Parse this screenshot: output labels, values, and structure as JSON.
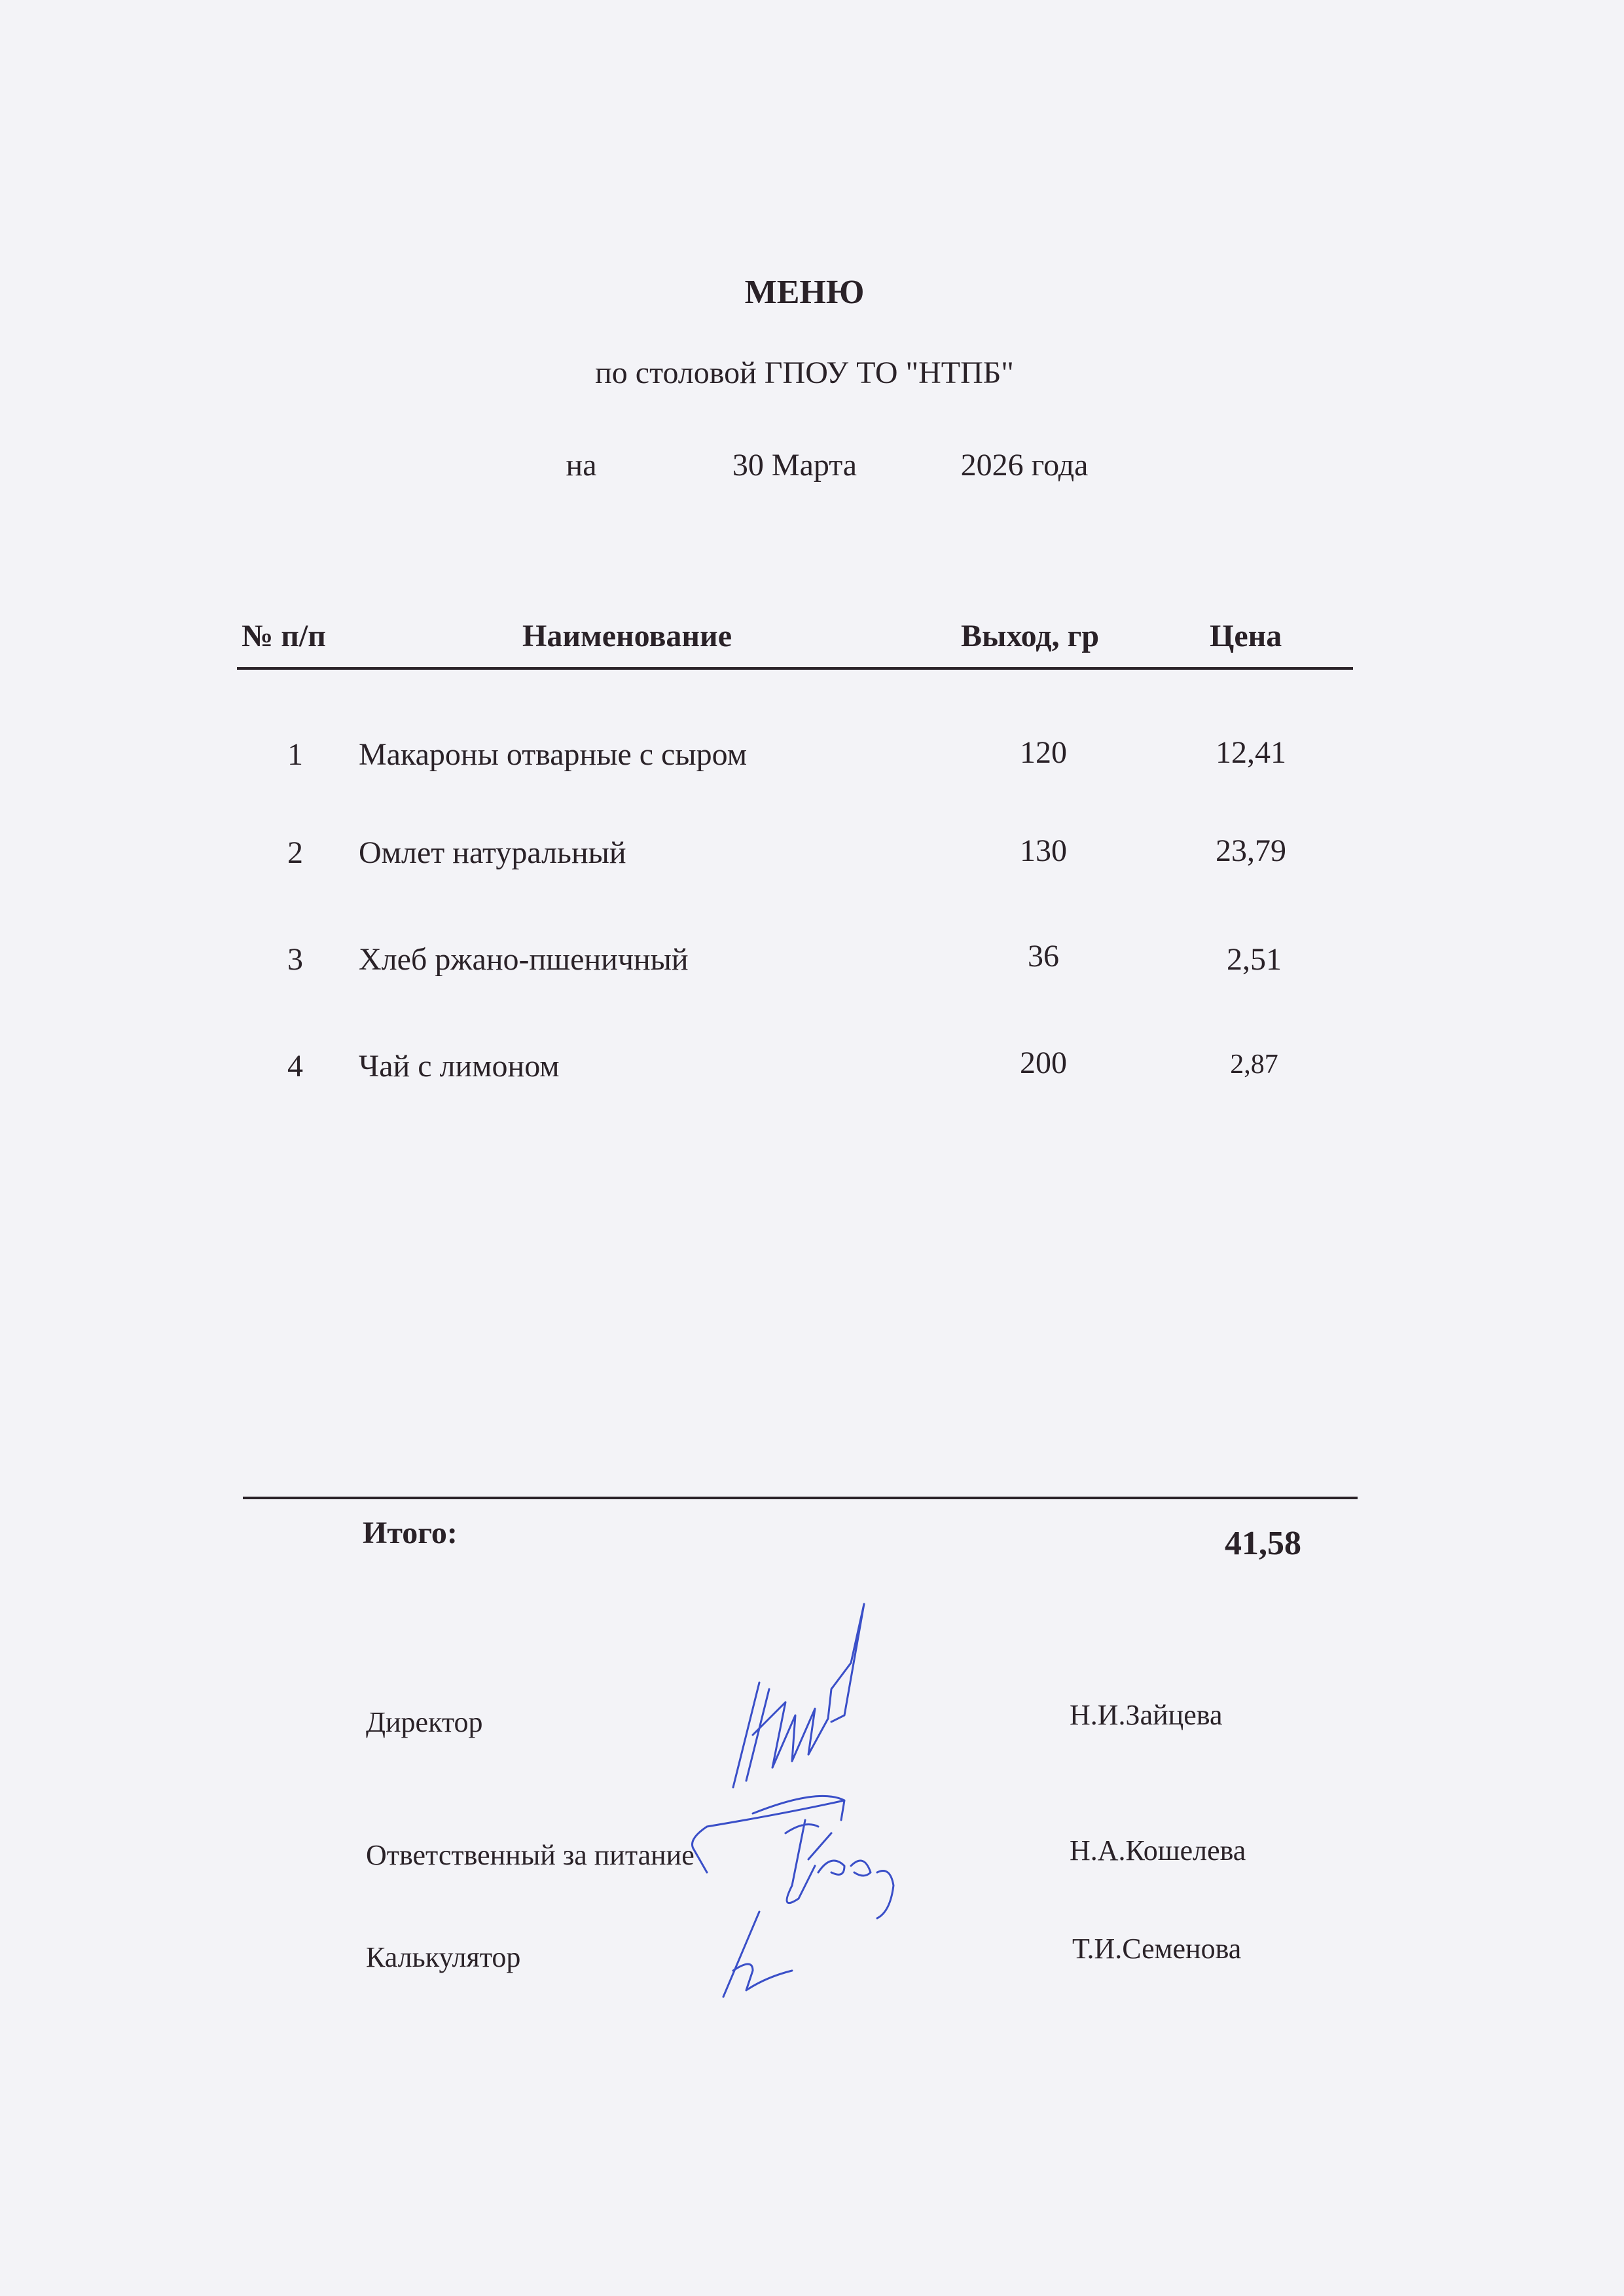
{
  "header": {
    "title": "МЕНЮ",
    "subtitle": "по столовой ГПОУ ТО \"НТПБ\"",
    "date_prefix": "на",
    "date_day_month": "30 Марта",
    "date_year": "2026 года"
  },
  "table": {
    "columns": [
      "№ п/п",
      "Наименование",
      "Выход, гр",
      "Цена"
    ],
    "rows": [
      {
        "num": "1",
        "name": "Макароны отварные с сыром",
        "weight": "120",
        "price": "12,41"
      },
      {
        "num": "2",
        "name": "Омлет натуральный",
        "weight": "130",
        "price": "23,79"
      },
      {
        "num": "3",
        "name": "Хлеб ржано-пшеничный",
        "weight": "36",
        "price": "2,51"
      },
      {
        "num": "4",
        "name": "Чай с лимоном",
        "weight": "200",
        "price": "2,87"
      }
    ],
    "total_label": "Итого:",
    "total_value": "41,58"
  },
  "signatures": [
    {
      "role": "Директор",
      "name": "Н.И.Зайцева"
    },
    {
      "role": "Ответственный за питание",
      "name": "Н.А.Кошелева"
    },
    {
      "role": "Калькулятор",
      "name": "Т.И.Семенова"
    }
  ],
  "colors": {
    "ink": "#2a2228",
    "signature_ink": "#3a4fc8",
    "paper": "#f3f3f7"
  }
}
